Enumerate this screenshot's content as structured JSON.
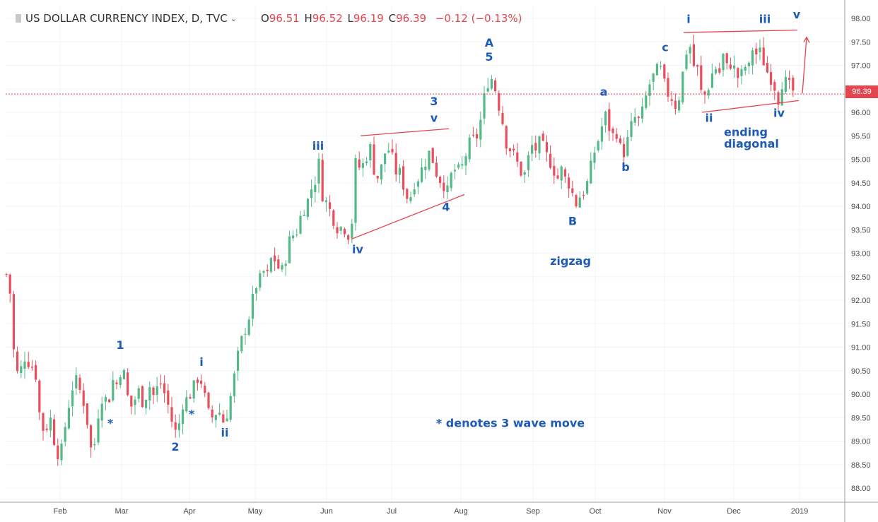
{
  "header": {
    "symbol": "US DOLLAR CURRENCY INDEX, D, TVC",
    "open_label": "O",
    "open": "96.51",
    "high_label": "H",
    "high": "96.52",
    "low_label": "L",
    "low": "96.19",
    "close_label": "C",
    "close": "96.39",
    "change": "−0.12 (−0.13%)"
  },
  "price_tag": "96.39",
  "colors": {
    "up": "#53b987",
    "down": "#eb4d5c",
    "annotation": "#1d5bb5",
    "trendline": "#e2464f"
  },
  "chart_data": {
    "type": "candlestick",
    "ylim": [
      87.7,
      98.2
    ],
    "yticks": [
      "88.00",
      "88.50",
      "89.00",
      "89.50",
      "90.00",
      "90.50",
      "91.00",
      "91.50",
      "92.00",
      "92.50",
      "93.00",
      "93.50",
      "94.00",
      "94.50",
      "95.00",
      "95.50",
      "96.00",
      "96.50",
      "97.00",
      "97.50",
      "98.00"
    ],
    "xticks": [
      "Feb",
      "Mar",
      "Apr",
      "May",
      "Jun",
      "Jul",
      "Aug",
      "Sep",
      "Oct",
      "Nov",
      "Dec",
      "2019"
    ],
    "last_price": 96.39,
    "close_path": [
      [
        1,
        92.4
      ],
      [
        9,
        92.55
      ],
      [
        15,
        92.1
      ],
      [
        21,
        90.5
      ],
      [
        27,
        90.4
      ],
      [
        35,
        90.8
      ],
      [
        45,
        90.6
      ],
      [
        51,
        90.4
      ],
      [
        57,
        89.4
      ],
      [
        63,
        89.2
      ],
      [
        71,
        89.5
      ],
      [
        77,
        89.0
      ],
      [
        85,
        88.6
      ],
      [
        93,
        89.4
      ],
      [
        101,
        90.1
      ],
      [
        107,
        90.3
      ],
      [
        115,
        90.0
      ],
      [
        121,
        89.7
      ],
      [
        127,
        89.0
      ],
      [
        131,
        88.6
      ],
      [
        139,
        89.6
      ],
      [
        145,
        90.0
      ],
      [
        153,
        89.8
      ],
      [
        159,
        90.3
      ],
      [
        166,
        90.2
      ],
      [
        173,
        90.7
      ],
      [
        179,
        90.0
      ],
      [
        187,
        89.7
      ],
      [
        195,
        90.1
      ],
      [
        203,
        89.8
      ],
      [
        211,
        90.2
      ],
      [
        219,
        89.9
      ],
      [
        225,
        90.3
      ],
      [
        231,
        90.1
      ],
      [
        239,
        89.7
      ],
      [
        245,
        89.3
      ],
      [
        251,
        89.1
      ],
      [
        257,
        89.8
      ],
      [
        265,
        89.9
      ],
      [
        273,
        90.1
      ],
      [
        281,
        90.4
      ],
      [
        287,
        90.2
      ],
      [
        293,
        89.6
      ],
      [
        301,
        89.5
      ],
      [
        309,
        89.7
      ],
      [
        315,
        89.4
      ],
      [
        321,
        89.6
      ],
      [
        327,
        90.0
      ],
      [
        333,
        90.5
      ],
      [
        339,
        91.0
      ],
      [
        347,
        91.4
      ],
      [
        355,
        91.8
      ],
      [
        361,
        92.3
      ],
      [
        367,
        92.4
      ],
      [
        373,
        92.6
      ],
      [
        379,
        92.5
      ],
      [
        385,
        93.0
      ],
      [
        393,
        92.7
      ],
      [
        401,
        92.6
      ],
      [
        407,
        93.2
      ],
      [
        415,
        93.4
      ],
      [
        421,
        93.5
      ],
      [
        427,
        93.9
      ],
      [
        435,
        94.1
      ],
      [
        441,
        94.4
      ],
      [
        447,
        94.6
      ],
      [
        451,
        94.9
      ],
      [
        455,
        94.3
      ],
      [
        461,
        94.1
      ],
      [
        467,
        93.9
      ],
      [
        473,
        93.7
      ],
      [
        479,
        93.5
      ],
      [
        485,
        93.6
      ],
      [
        493,
        93.4
      ],
      [
        497,
        93.5
      ],
      [
        503,
        94.9
      ],
      [
        511,
        94.8
      ],
      [
        517,
        95.0
      ],
      [
        523,
        95.3
      ],
      [
        529,
        94.8
      ],
      [
        535,
        94.6
      ],
      [
        541,
        94.9
      ],
      [
        547,
        95.3
      ],
      [
        553,
        95.1
      ],
      [
        561,
        94.7
      ],
      [
        567,
        94.7
      ],
      [
        573,
        94.3
      ],
      [
        579,
        94.1
      ],
      [
        585,
        94.5
      ],
      [
        591,
        94.6
      ],
      [
        597,
        94.8
      ],
      [
        603,
        95.0
      ],
      [
        609,
        95.2
      ],
      [
        615,
        94.8
      ],
      [
        621,
        94.6
      ],
      [
        627,
        94.5
      ],
      [
        633,
        94.3
      ],
      [
        639,
        94.7
      ],
      [
        645,
        94.8
      ],
      [
        651,
        94.7
      ],
      [
        657,
        95.0
      ],
      [
        663,
        95.3
      ],
      [
        669,
        95.4
      ],
      [
        675,
        95.5
      ],
      [
        681,
        95.9
      ],
      [
        687,
        96.5
      ],
      [
        693,
        96.8
      ],
      [
        699,
        96.6
      ],
      [
        705,
        96.2
      ],
      [
        711,
        95.8
      ],
      [
        717,
        95.3
      ],
      [
        723,
        95.2
      ],
      [
        729,
        95.0
      ],
      [
        735,
        94.8
      ],
      [
        741,
        94.6
      ],
      [
        747,
        95.0
      ],
      [
        753,
        95.3
      ],
      [
        759,
        95.2
      ],
      [
        765,
        95.4
      ],
      [
        771,
        95.1
      ],
      [
        777,
        95.0
      ],
      [
        783,
        94.8
      ],
      [
        789,
        94.6
      ],
      [
        795,
        94.8
      ],
      [
        801,
        94.5
      ],
      [
        807,
        94.5
      ],
      [
        813,
        94.0
      ],
      [
        819,
        94.2
      ],
      [
        825,
        94.3
      ],
      [
        831,
        94.5
      ],
      [
        837,
        94.9
      ],
      [
        843,
        95.3
      ],
      [
        849,
        95.5
      ],
      [
        855,
        96.0
      ],
      [
        861,
        95.7
      ],
      [
        867,
        95.5
      ],
      [
        873,
        95.6
      ],
      [
        879,
        95.1
      ],
      [
        885,
        95.2
      ],
      [
        891,
        95.6
      ],
      [
        897,
        95.9
      ],
      [
        903,
        95.8
      ],
      [
        909,
        96.0
      ],
      [
        915,
        96.4
      ],
      [
        921,
        96.7
      ],
      [
        927,
        96.8
      ],
      [
        933,
        97.0
      ],
      [
        939,
        96.6
      ],
      [
        945,
        96.4
      ],
      [
        951,
        96.3
      ],
      [
        957,
        96.1
      ],
      [
        963,
        96.5
      ],
      [
        969,
        97.2
      ],
      [
        975,
        97.5
      ],
      [
        981,
        97.0
      ],
      [
        987,
        96.9
      ],
      [
        993,
        96.3
      ],
      [
        999,
        96.4
      ],
      [
        1005,
        96.7
      ],
      [
        1011,
        97.0
      ],
      [
        1017,
        96.8
      ],
      [
        1023,
        97.2
      ],
      [
        1029,
        96.9
      ],
      [
        1035,
        97.1
      ],
      [
        1041,
        96.8
      ],
      [
        1047,
        96.7
      ],
      [
        1053,
        97.0
      ],
      [
        1059,
        96.9
      ],
      [
        1065,
        97.4
      ],
      [
        1071,
        97.2
      ],
      [
        1077,
        97.3
      ],
      [
        1083,
        96.9
      ],
      [
        1089,
        96.8
      ],
      [
        1095,
        96.6
      ],
      [
        1101,
        96.3
      ],
      [
        1107,
        96.7
      ],
      [
        1113,
        96.6
      ],
      [
        1119,
        96.5
      ],
      [
        1125,
        96.39
      ]
    ],
    "annotations": [
      {
        "text": "1",
        "x": 170,
        "y": 90.96
      },
      {
        "text": "2",
        "x": 248,
        "y": 88.8
      },
      {
        "text": "i",
        "x": 285,
        "y": 90.6
      },
      {
        "text": "ii",
        "x": 318,
        "y": 89.1
      },
      {
        "text": "*",
        "x": 156,
        "y": 89.3
      },
      {
        "text": "*",
        "x": 271,
        "y": 89.5
      },
      {
        "text": "iii",
        "x": 450,
        "y": 95.2
      },
      {
        "text": "iv",
        "x": 506,
        "y": 93.0
      },
      {
        "text": "3",
        "x": 614,
        "y": 96.15
      },
      {
        "text": "v",
        "x": 614,
        "y": 95.8
      },
      {
        "text": "4",
        "x": 631,
        "y": 93.9
      },
      {
        "text": "A",
        "x": 692,
        "y": 97.4
      },
      {
        "text": "5",
        "x": 692,
        "y": 97.1
      },
      {
        "text": "B",
        "x": 810,
        "y": 93.6
      },
      {
        "text": "zigzag",
        "x": 807,
        "y": 92.75
      },
      {
        "text": "a",
        "x": 854,
        "y": 96.35
      },
      {
        "text": "b",
        "x": 885,
        "y": 94.75
      },
      {
        "text": "c",
        "x": 941,
        "y": 97.3
      },
      {
        "text": "i",
        "x": 974,
        "y": 97.9
      },
      {
        "text": "ii",
        "x": 1003,
        "y": 95.8
      },
      {
        "text": "iii",
        "x": 1082,
        "y": 97.9
      },
      {
        "text": "iv",
        "x": 1102,
        "y": 95.9
      },
      {
        "text": "v",
        "x": 1127,
        "y": 98.0
      },
      {
        "text": "ending",
        "x": 1055,
        "y": 95.5
      },
      {
        "text": "diagonal",
        "x": 1063,
        "y": 95.25
      },
      {
        "text": "* denotes 3 wave move",
        "x": 722,
        "y": 89.3
      }
    ],
    "trendlines": [
      {
        "from": [
          497,
          93.3
        ],
        "to": [
          657,
          94.25
        ]
      },
      {
        "from": [
          510,
          95.5
        ],
        "to": [
          635,
          95.65
        ]
      },
      {
        "from": [
          967,
          97.7
        ],
        "to": [
          1128,
          97.75
        ]
      },
      {
        "from": [
          993,
          96.0
        ],
        "to": [
          1130,
          96.25
        ]
      }
    ],
    "arrow": {
      "from": [
        1135,
        96.4
      ],
      "to": [
        1141,
        97.6
      ]
    }
  }
}
